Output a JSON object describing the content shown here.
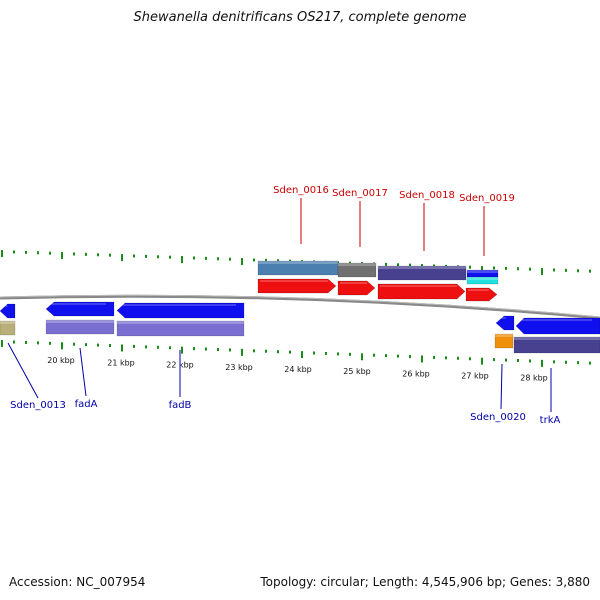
{
  "title": "Shewanella denitrificans OS217, complete genome",
  "footer": {
    "accession_prefix": "Accession:",
    "accession": "NC_007954",
    "topology_text": "Topology: circular; Length: 4,545,906 bp; Genes: 3,880"
  },
  "colors": {
    "backbone": "#888888",
    "tick": "#1a8a1a",
    "label_top": "#cc0000",
    "label_bottom": "#0000aa",
    "gene_blue": "#1010ee",
    "gene_red": "#ee1010",
    "cds_purple": "#7a6fd0",
    "cds_dark": "#48418f",
    "cds_steel": "#4a7fb0",
    "cds_grey": "#707070",
    "cds_cyan": "#20e0e0",
    "cds_khaki": "#b8b078",
    "cds_orange": "#f0900a"
  },
  "scale": {
    "unit": "kbp",
    "ticks": [
      {
        "label": "20 kbp"
      },
      {
        "label": "21 kbp"
      },
      {
        "label": "22 kbp"
      },
      {
        "label": "23 kbp"
      },
      {
        "label": "24 kbp"
      },
      {
        "label": "25 kbp"
      },
      {
        "label": "26 kbp"
      },
      {
        "label": "27 kbp"
      },
      {
        "label": "28 kbp"
      }
    ]
  },
  "labels_top": [
    {
      "text": "Sden_0016"
    },
    {
      "text": "Sden_0017"
    },
    {
      "text": "Sden_0018"
    },
    {
      "text": "Sden_0019"
    }
  ],
  "labels_bottom": [
    {
      "text": "Sden_0013"
    },
    {
      "text": "fadA"
    },
    {
      "text": "fadB"
    },
    {
      "text": "Sden_0020"
    },
    {
      "text": "trkA"
    }
  ]
}
